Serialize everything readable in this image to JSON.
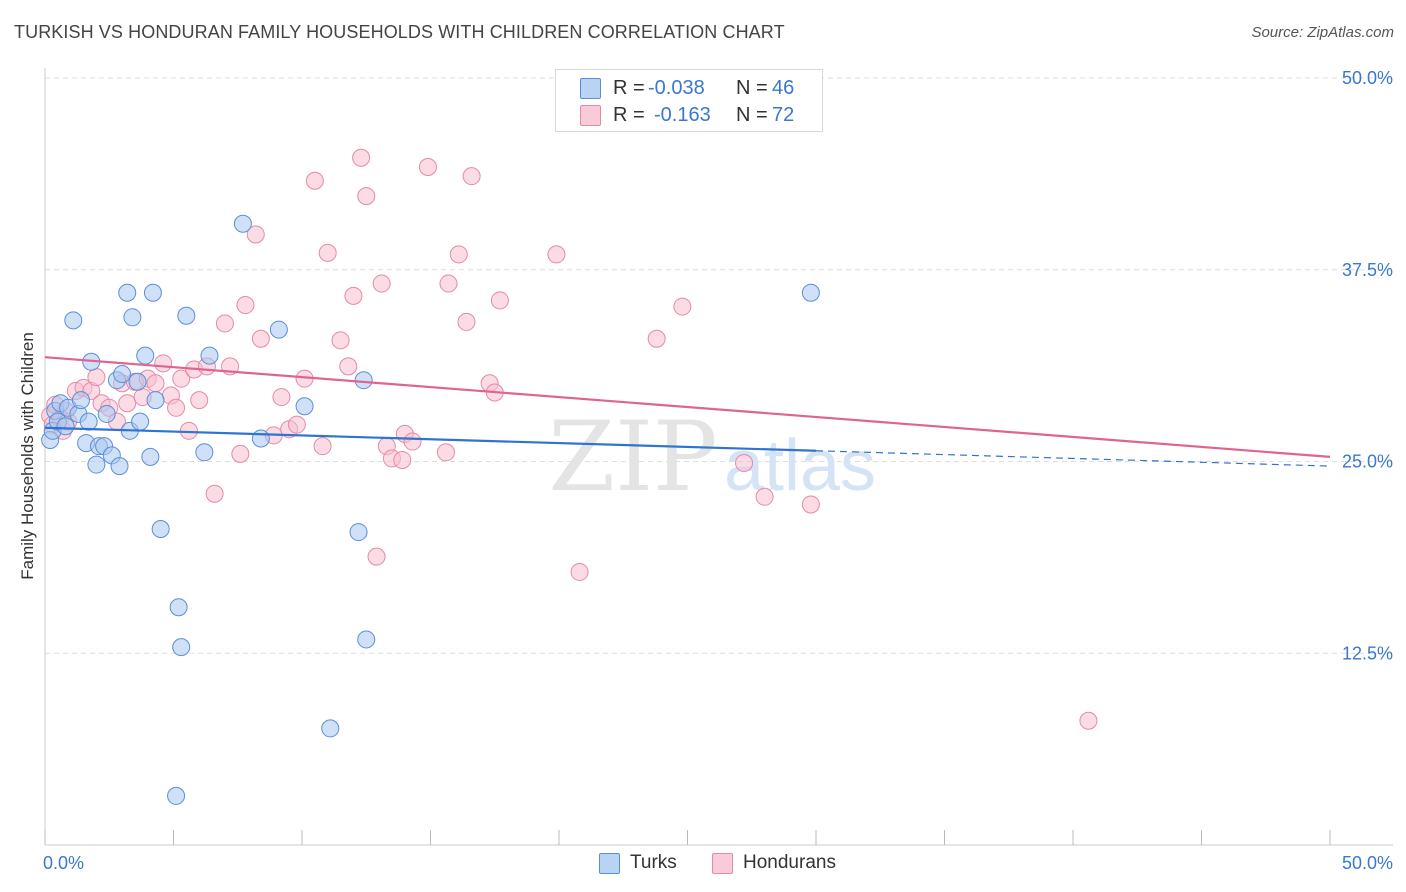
{
  "title": "TURKISH VS HONDURAN FAMILY HOUSEHOLDS WITH CHILDREN CORRELATION CHART",
  "source": "Source: ZipAtlas.com",
  "watermark": {
    "zip": "ZIP",
    "atlas": "atlas"
  },
  "colors": {
    "turks_fill": "#a9c8f0",
    "turks_stroke": "#5a8fd8",
    "turks_line": "#2f74d0",
    "hondurans_fill": "#f7bfd0",
    "hondurans_stroke": "#e58aa6",
    "hondurans_line": "#e0648f",
    "axis_text": "#3a78d0",
    "grid": "#dddddd"
  },
  "legend": {
    "rows": [
      {
        "r_label": "R =",
        "r_value": "-0.038",
        "n_label": "N =",
        "n_value": "46"
      },
      {
        "r_label": "R =",
        "r_value": "-0.163",
        "n_label": "N =",
        "n_value": "72"
      }
    ]
  },
  "chart_data": {
    "type": "scatter",
    "title": "TURKISH VS HONDURAN FAMILY HOUSEHOLDS WITH CHILDREN CORRELATION CHART",
    "xlabel": "",
    "ylabel": "Family Households with Children",
    "xlim": [
      0,
      50
    ],
    "ylim": [
      0,
      50
    ],
    "x_tick_labels": [
      "0.0%",
      "50.0%"
    ],
    "y_tick_labels": [
      "12.5%",
      "25.0%",
      "37.5%",
      "50.0%"
    ],
    "y_ticks": [
      12.5,
      25.0,
      37.5,
      50.0
    ],
    "grid": true,
    "legend_position": "bottom",
    "series": [
      {
        "name": "Turks",
        "trend": {
          "x0": 0,
          "y0": 27.2,
          "x1": 30,
          "y1": 25.7,
          "dash_to_x": 50,
          "dash_to_y": 24.7
        },
        "points": [
          [
            0.2,
            26.4
          ],
          [
            0.3,
            27.0
          ],
          [
            0.4,
            28.3
          ],
          [
            0.5,
            27.6
          ],
          [
            0.6,
            28.8
          ],
          [
            0.8,
            27.3
          ],
          [
            0.9,
            28.5
          ],
          [
            1.1,
            34.2
          ],
          [
            1.3,
            28.1
          ],
          [
            1.4,
            29.0
          ],
          [
            1.6,
            26.2
          ],
          [
            1.7,
            27.6
          ],
          [
            1.8,
            31.5
          ],
          [
            2.0,
            24.8
          ],
          [
            2.1,
            26.0
          ],
          [
            2.3,
            26.0
          ],
          [
            2.4,
            28.1
          ],
          [
            2.6,
            25.4
          ],
          [
            2.8,
            30.3
          ],
          [
            2.9,
            24.7
          ],
          [
            3.0,
            30.7
          ],
          [
            3.2,
            36.0
          ],
          [
            3.3,
            27.0
          ],
          [
            3.4,
            34.4
          ],
          [
            3.6,
            30.2
          ],
          [
            3.7,
            27.6
          ],
          [
            3.9,
            31.9
          ],
          [
            4.1,
            25.3
          ],
          [
            4.2,
            36.0
          ],
          [
            4.3,
            29.0
          ],
          [
            4.5,
            20.6
          ],
          [
            5.2,
            15.5
          ],
          [
            5.3,
            12.9
          ],
          [
            5.5,
            34.5
          ],
          [
            6.2,
            25.6
          ],
          [
            6.4,
            31.9
          ],
          [
            7.7,
            40.5
          ],
          [
            8.4,
            26.5
          ],
          [
            9.1,
            33.6
          ],
          [
            10.1,
            28.6
          ],
          [
            11.1,
            7.6
          ],
          [
            12.2,
            20.4
          ],
          [
            12.4,
            30.3
          ],
          [
            12.5,
            13.4
          ],
          [
            5.1,
            3.2
          ],
          [
            29.8,
            36.0
          ]
        ]
      },
      {
        "name": "Hondurans",
        "trend": {
          "x0": 0,
          "y0": 31.8,
          "x1": 50,
          "y1": 25.3
        },
        "points": [
          [
            0.2,
            28.0
          ],
          [
            0.3,
            27.4
          ],
          [
            0.4,
            28.7
          ],
          [
            0.6,
            27.8
          ],
          [
            0.7,
            27.0
          ],
          [
            0.8,
            28.3
          ],
          [
            0.9,
            27.6
          ],
          [
            1.2,
            29.6
          ],
          [
            1.5,
            29.8
          ],
          [
            1.8,
            29.6
          ],
          [
            2.0,
            30.5
          ],
          [
            2.2,
            28.8
          ],
          [
            2.5,
            28.5
          ],
          [
            2.8,
            27.6
          ],
          [
            3.0,
            30.1
          ],
          [
            3.2,
            28.8
          ],
          [
            3.5,
            30.2
          ],
          [
            3.8,
            29.2
          ],
          [
            4.0,
            30.4
          ],
          [
            4.3,
            30.1
          ],
          [
            4.6,
            31.4
          ],
          [
            4.9,
            29.3
          ],
          [
            5.1,
            28.5
          ],
          [
            5.3,
            30.4
          ],
          [
            5.6,
            27.0
          ],
          [
            5.8,
            31.0
          ],
          [
            6.0,
            29.0
          ],
          [
            6.3,
            31.2
          ],
          [
            6.6,
            22.9
          ],
          [
            7.0,
            34.0
          ],
          [
            7.2,
            31.2
          ],
          [
            7.6,
            25.5
          ],
          [
            7.8,
            35.2
          ],
          [
            8.2,
            39.8
          ],
          [
            8.4,
            33.0
          ],
          [
            8.9,
            26.7
          ],
          [
            9.2,
            29.2
          ],
          [
            9.5,
            27.1
          ],
          [
            9.8,
            27.4
          ],
          [
            10.1,
            30.4
          ],
          [
            10.5,
            43.3
          ],
          [
            10.8,
            26.0
          ],
          [
            11.0,
            38.6
          ],
          [
            11.5,
            32.9
          ],
          [
            11.8,
            31.2
          ],
          [
            12.0,
            35.8
          ],
          [
            12.3,
            44.8
          ],
          [
            12.5,
            42.3
          ],
          [
            12.9,
            18.8
          ],
          [
            13.1,
            36.6
          ],
          [
            13.3,
            26.0
          ],
          [
            13.5,
            25.2
          ],
          [
            13.9,
            25.1
          ],
          [
            14.0,
            26.8
          ],
          [
            14.3,
            26.3
          ],
          [
            14.9,
            44.2
          ],
          [
            15.6,
            25.6
          ],
          [
            15.7,
            36.6
          ],
          [
            16.1,
            38.5
          ],
          [
            16.4,
            34.1
          ],
          [
            16.6,
            43.6
          ],
          [
            17.3,
            30.1
          ],
          [
            17.5,
            29.5
          ],
          [
            17.7,
            35.5
          ],
          [
            19.9,
            38.5
          ],
          [
            20.8,
            17.8
          ],
          [
            23.8,
            33.0
          ],
          [
            24.8,
            35.1
          ],
          [
            27.2,
            24.9
          ],
          [
            28.0,
            22.7
          ],
          [
            29.8,
            22.2
          ],
          [
            40.6,
            8.1
          ]
        ]
      }
    ]
  },
  "bottom_legend": [
    {
      "label": "Turks"
    },
    {
      "label": "Hondurans"
    }
  ]
}
